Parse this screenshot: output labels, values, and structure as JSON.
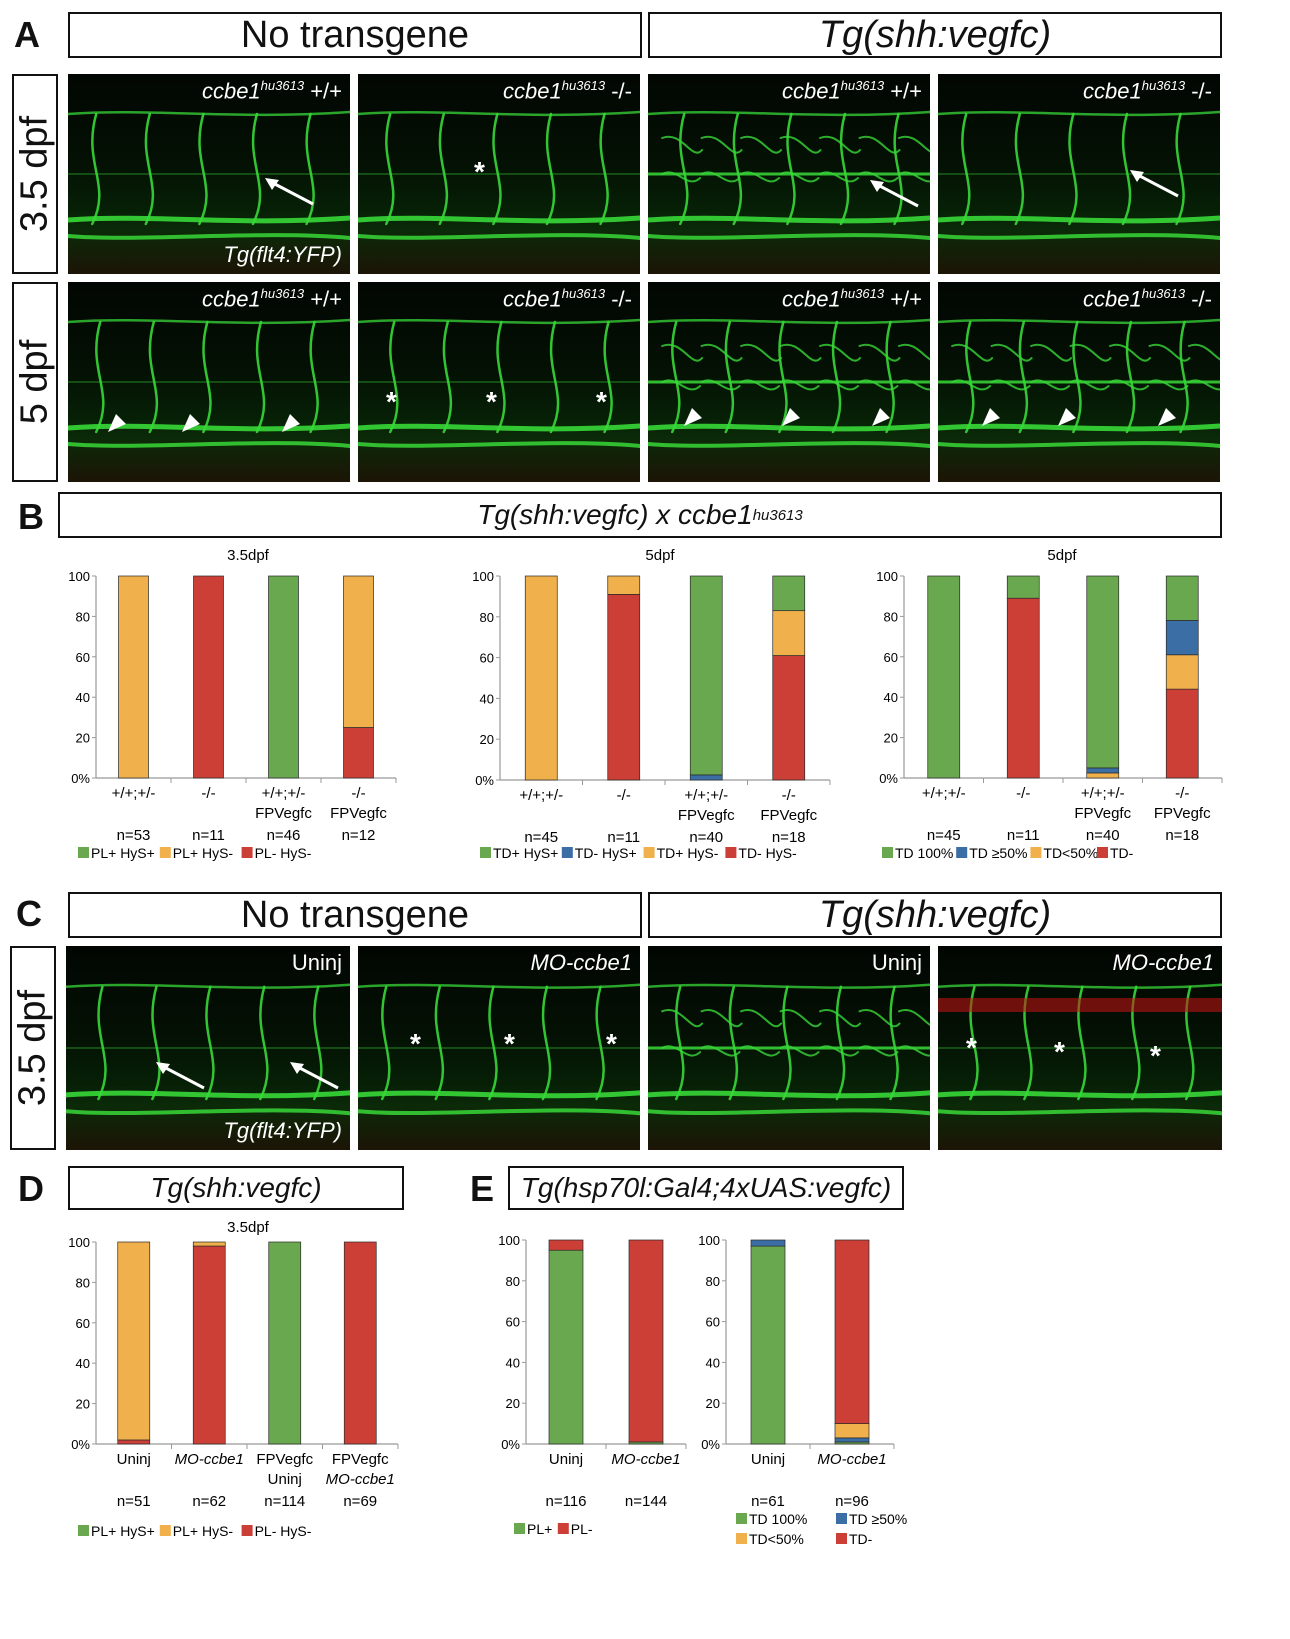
{
  "panels": [
    "A",
    "B",
    "C",
    "D",
    "E"
  ],
  "panel_a": {
    "headers": [
      "No transgene",
      "Tg(shh:vegfc)"
    ],
    "rows": [
      "3.5 dpf",
      "5 dpf"
    ],
    "images": [
      {
        "genotype": "ccbe1",
        "allele": "hu3613",
        "zyg": "+/+",
        "overlay": "Tg(flt4:YFP)"
      },
      {
        "genotype": "ccbe1",
        "allele": "hu3613",
        "zyg": "-/-"
      },
      {
        "genotype": "ccbe1",
        "allele": "hu3613",
        "zyg": "+/+"
      },
      {
        "genotype": "ccbe1",
        "allele": "hu3613",
        "zyg": "-/-"
      },
      {
        "genotype": "ccbe1",
        "allele": "hu3613",
        "zyg": "+/+"
      },
      {
        "genotype": "ccbe1",
        "allele": "hu3613",
        "zyg": "-/-"
      },
      {
        "genotype": "ccbe1",
        "allele": "hu3613",
        "zyg": "+/+"
      },
      {
        "genotype": "ccbe1",
        "allele": "hu3613",
        "zyg": "-/-"
      }
    ]
  },
  "panel_b": {
    "title_a": "Tg(shh:vegfc) x ccbe1",
    "title_sup": "hu3613"
  },
  "panel_c": {
    "headers": [
      "No transgene",
      "Tg(shh:vegfc)"
    ],
    "row": "3.5 dpf",
    "images": [
      {
        "label": "Uninj",
        "overlay": "Tg(flt4:YFP)"
      },
      {
        "label": "MO-ccbe1"
      },
      {
        "label": "Uninj"
      },
      {
        "label": "MO-ccbe1"
      }
    ]
  },
  "panel_d": {
    "title": "Tg(shh:vegfc)"
  },
  "panel_e": {
    "title": "Tg(hsp70l:Gal4;4xUAS:vegfc)"
  },
  "colors": {
    "green": "#6aa84f",
    "orange": "#f0b04c",
    "red": "#cc3f37",
    "blue": "#3a6ea5"
  },
  "chart_data": [
    {
      "type": "bar",
      "stacked": true,
      "title": "3.5dpf",
      "ylim": [
        0,
        100
      ],
      "yticks": [
        "0%",
        "20",
        "40",
        "60",
        "80",
        "100"
      ],
      "categories": [
        [
          "+/+;+/-"
        ],
        [
          "-/-"
        ],
        [
          "+/+;+/-",
          "FPVegfc"
        ],
        [
          "-/-",
          "FPVegfc"
        ]
      ],
      "n": [
        "n=53",
        "n=11",
        "n=46",
        "n=12"
      ],
      "series": [
        {
          "name": "PL- HyS-",
          "color": "red",
          "values": [
            0,
            100,
            0,
            25
          ]
        },
        {
          "name": "PL+ HyS-",
          "color": "orange",
          "values": [
            100,
            0,
            0,
            75
          ]
        },
        {
          "name": "PL+ HyS+",
          "color": "green",
          "values": [
            0,
            0,
            100,
            0
          ]
        }
      ],
      "legend": [
        "PL+ HyS+",
        "PL+ HyS-",
        "PL- HyS-"
      ]
    },
    {
      "type": "bar",
      "stacked": true,
      "title": "5dpf",
      "ylim": [
        0,
        100
      ],
      "yticks": [
        "0%",
        "20",
        "40",
        "60",
        "80",
        "100"
      ],
      "categories": [
        [
          "+/+;+/-"
        ],
        [
          "-/-"
        ],
        [
          "+/+;+/-",
          "FPVegfc"
        ],
        [
          "-/-",
          "FPVegfc"
        ]
      ],
      "n": [
        "n=45",
        "n=11",
        "n=40",
        "n=18"
      ],
      "series": [
        {
          "name": "TD- HyS-",
          "color": "red",
          "values": [
            0,
            91,
            0,
            61
          ]
        },
        {
          "name": "TD+ HyS-",
          "color": "orange",
          "values": [
            100,
            9,
            0,
            22
          ]
        },
        {
          "name": "TD- HyS+",
          "color": "blue",
          "values": [
            0,
            0,
            2.5,
            0
          ]
        },
        {
          "name": "TD+ HyS+",
          "color": "green",
          "values": [
            0,
            0,
            97.5,
            17
          ]
        }
      ],
      "legend": [
        "TD+ HyS+",
        "TD- HyS+",
        "TD+ HyS-",
        "TD- HyS-"
      ]
    },
    {
      "type": "bar",
      "stacked": true,
      "title": "5dpf",
      "ylim": [
        0,
        100
      ],
      "yticks": [
        "0%",
        "20",
        "40",
        "60",
        "80",
        "100"
      ],
      "categories": [
        [
          "+/+;+/-"
        ],
        [
          "-/-"
        ],
        [
          "+/+;+/-",
          "FPVegfc"
        ],
        [
          "-/-",
          "FPVegfc"
        ]
      ],
      "n": [
        "n=45",
        "n=11",
        "n=40",
        "n=18"
      ],
      "series": [
        {
          "name": "TD-",
          "color": "red",
          "values": [
            0,
            89,
            0,
            44
          ]
        },
        {
          "name": "TD<50%",
          "color": "orange",
          "values": [
            0,
            0,
            2.5,
            17
          ]
        },
        {
          "name": "TD ≥50%",
          "color": "blue",
          "values": [
            0,
            0,
            2.5,
            17
          ]
        },
        {
          "name": "TD 100%",
          "color": "green",
          "values": [
            100,
            11,
            95,
            22
          ]
        }
      ],
      "legend": [
        "TD 100%",
        "TD ≥50%",
        "TD<50%",
        "TD-"
      ]
    },
    {
      "type": "bar",
      "stacked": true,
      "title": "3.5dpf",
      "ylim": [
        0,
        100
      ],
      "yticks": [
        "0%",
        "20",
        "40",
        "60",
        "80",
        "100"
      ],
      "categories": [
        [
          "Uninj"
        ],
        [
          "MO-ccbe1"
        ],
        [
          "FPVegfc",
          "Uninj"
        ],
        [
          "FPVegfc",
          "MO-ccbe1"
        ]
      ],
      "n": [
        "n=51",
        "n=62",
        "n=114",
        "n=69"
      ],
      "series": [
        {
          "name": "PL- HyS-",
          "color": "red",
          "values": [
            2,
            98,
            0,
            100
          ]
        },
        {
          "name": "PL+ HyS-",
          "color": "orange",
          "values": [
            98,
            2,
            0,
            0
          ]
        },
        {
          "name": "PL+ HyS+",
          "color": "green",
          "values": [
            0,
            0,
            100,
            0
          ]
        }
      ],
      "legend": [
        "PL+ HyS+",
        "PL+ HyS-",
        "PL- HyS-"
      ]
    },
    {
      "type": "bar",
      "stacked": true,
      "title": "",
      "ylim": [
        0,
        100
      ],
      "yticks": [
        "0%",
        "20",
        "40",
        "60",
        "80",
        "100"
      ],
      "categories": [
        [
          "Uninj"
        ],
        [
          "MO-ccbe1"
        ]
      ],
      "n": [
        "n=116",
        "n=144"
      ],
      "series": [
        {
          "name": "PL+",
          "color": "green",
          "values": [
            95,
            1
          ]
        },
        {
          "name": "PL-",
          "color": "red",
          "values": [
            5,
            99
          ]
        }
      ],
      "legend": [
        "PL+",
        "PL-"
      ]
    },
    {
      "type": "bar",
      "stacked": true,
      "title": "",
      "ylim": [
        0,
        100
      ],
      "yticks": [
        "0%",
        "20",
        "40",
        "60",
        "80",
        "100"
      ],
      "categories": [
        [
          "Uninj"
        ],
        [
          "MO-ccbe1"
        ]
      ],
      "n": [
        "n=61",
        "n=96"
      ],
      "series": [
        {
          "name": "TD 100%",
          "color": "green",
          "values": [
            97,
            1
          ]
        },
        {
          "name": "TD ≥50%",
          "color": "blue",
          "values": [
            3,
            2
          ]
        },
        {
          "name": "TD<50%",
          "color": "orange",
          "values": [
            0,
            7
          ]
        },
        {
          "name": "TD-",
          "color": "red",
          "values": [
            0,
            90
          ]
        }
      ],
      "legend": [
        "TD 100%",
        "TD ≥50%",
        "TD<50%",
        "TD-"
      ]
    }
  ]
}
